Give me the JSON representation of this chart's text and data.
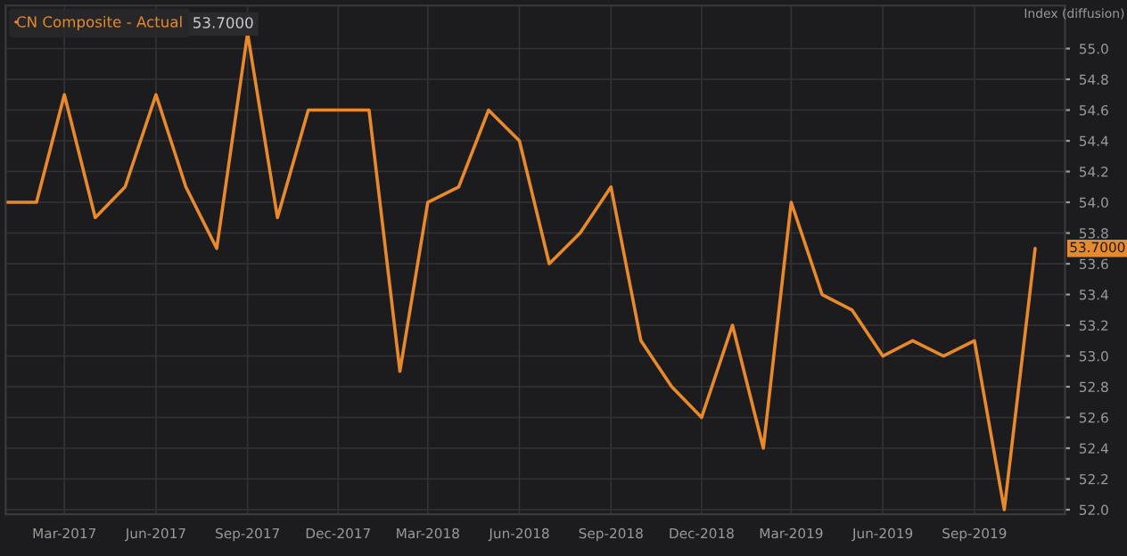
{
  "chart_data": {
    "type": "line",
    "ylabel": "Index (diffusion)",
    "x": [
      "2017-01",
      "2017-02",
      "2017-03",
      "2017-04",
      "2017-05",
      "2017-06",
      "2017-07",
      "2017-08",
      "2017-09",
      "2017-10",
      "2017-11",
      "2017-12",
      "2018-01",
      "2018-02",
      "2018-03",
      "2018-04",
      "2018-05",
      "2018-06",
      "2018-07",
      "2018-08",
      "2018-09",
      "2018-10",
      "2018-11",
      "2018-12",
      "2019-01",
      "2019-02",
      "2019-03",
      "2019-04",
      "2019-05",
      "2019-06",
      "2019-07",
      "2019-08",
      "2019-09",
      "2019-10",
      "2019-11"
    ],
    "series": [
      {
        "name": "CN Composite - Actual",
        "color": "#e8892b",
        "values": [
          54.0,
          54.0,
          54.7,
          53.9,
          54.1,
          54.7,
          54.1,
          53.7,
          55.1,
          53.9,
          54.6,
          54.6,
          54.6,
          52.9,
          54.0,
          54.1,
          54.6,
          54.4,
          53.6,
          53.8,
          54.1,
          53.1,
          52.8,
          52.6,
          53.2,
          52.4,
          54.0,
          53.4,
          53.3,
          53.0,
          53.1,
          53.0,
          53.1,
          52.0,
          53.7
        ]
      }
    ],
    "annotations": [
      "53.7000",
      {
        "text": "53.7000",
        "x": "2019-11",
        "y": 53.7
      }
    ],
    "xlim": [
      "2017-01-01",
      "2019-12-01"
    ],
    "xticks": [
      {
        "value": "2017-03",
        "label": "Mar-2017"
      },
      {
        "value": "2017-06",
        "label": "Jun-2017"
      },
      {
        "value": "2017-09",
        "label": "Sep-2017"
      },
      {
        "value": "2017-12",
        "label": "Dec-2017"
      },
      {
        "value": "2018-03",
        "label": "Mar-2018"
      },
      {
        "value": "2018-06",
        "label": "Jun-2018"
      },
      {
        "value": "2018-09",
        "label": "Sep-2018"
      },
      {
        "value": "2018-12",
        "label": "Dec-2018"
      },
      {
        "value": "2019-03",
        "label": "Mar-2019"
      },
      {
        "value": "2019-06",
        "label": "Jun-2019"
      },
      {
        "value": "2019-09",
        "label": "Sep-2019"
      }
    ],
    "ylim": [
      51.97,
      55.28
    ],
    "yticks": [
      {
        "value": 52.0,
        "label": "52.0"
      },
      {
        "value": 52.2,
        "label": "52.2"
      },
      {
        "value": 52.4,
        "label": "52.4"
      },
      {
        "value": 52.6,
        "label": "52.6"
      },
      {
        "value": 52.8,
        "label": "52.8"
      },
      {
        "value": 53.0,
        "label": "53.0"
      },
      {
        "value": 53.2,
        "label": "53.2"
      },
      {
        "value": 53.4,
        "label": "53.4"
      },
      {
        "value": 53.6,
        "label": "53.6"
      },
      {
        "value": 53.8,
        "label": "53.8"
      },
      {
        "value": 54.0,
        "label": "54.0"
      },
      {
        "value": 54.2,
        "label": "54.2"
      },
      {
        "value": 54.4,
        "label": "54.4"
      },
      {
        "value": 54.6,
        "label": "54.6"
      },
      {
        "value": 54.8,
        "label": "54.8"
      },
      {
        "value": 55.0,
        "label": "55.0"
      }
    ],
    "grid": true,
    "legend": "top left",
    "marker": "none",
    "line_style": "solid"
  }
}
